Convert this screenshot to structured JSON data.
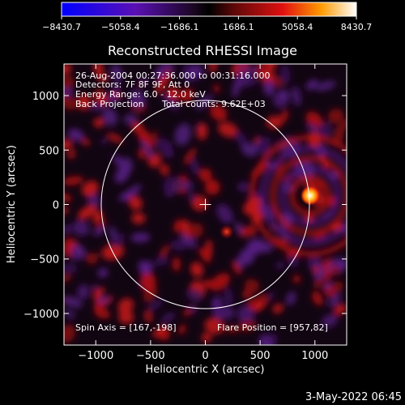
{
  "chart_data": {
    "type": "heatmap",
    "title": "Reconstructed RHESSI Image",
    "xlabel": "Heliocentric X (arcsec)",
    "ylabel": "Heliocentric Y (arcsec)",
    "xlim": [
      -1290,
      1290
    ],
    "ylim": [
      -1290,
      1290
    ],
    "xticks": [
      -1000,
      -500,
      0,
      500,
      1000
    ],
    "yticks": [
      -1000,
      -500,
      0,
      500,
      1000
    ],
    "xtick_labels": [
      "−1000",
      "−500",
      "0",
      "500",
      "1000"
    ],
    "ytick_labels": [
      "−1000",
      "−500",
      "0",
      "500",
      "1000"
    ],
    "colorbar": {
      "range": [
        -8430.7,
        8430.7
      ],
      "ticks": [
        -8430.7,
        -5058.4,
        -1686.1,
        1686.1,
        5058.4,
        8430.7
      ],
      "tick_labels": [
        "−8430.7",
        "−5058.4",
        "−1686.1",
        "1686.1",
        "5058.4",
        "8430.7"
      ],
      "colors": [
        "#0000ff",
        "#6a10c8",
        "#3a0a3a",
        "#000000",
        "#7a0a0a",
        "#e81010",
        "#ff9000",
        "#ffffff"
      ]
    },
    "solar_limb_radius_arcsec": 950,
    "disk_center_marker": [
      0,
      0
    ],
    "sources": [
      {
        "x": 957,
        "y": 82,
        "intensity": 8430.7,
        "label": "Flare Position"
      },
      {
        "x": 195,
        "y": -250,
        "intensity": 4500
      }
    ],
    "info_lines": [
      "26-Aug-2004 00:27:36.000 to 00:31:16.000",
      "Detectors: 7F 8F 9F, Att 0",
      "Energy Range: 6.0 - 12.0 keV",
      "Back Projection"
    ],
    "total_counts": "Total counts: 9.62E+03",
    "spin_axis": "Spin Axis = [167,-198]",
    "flare_position": "Flare Position = [957,82]"
  },
  "timestamp": "3-May-2022 06:45"
}
